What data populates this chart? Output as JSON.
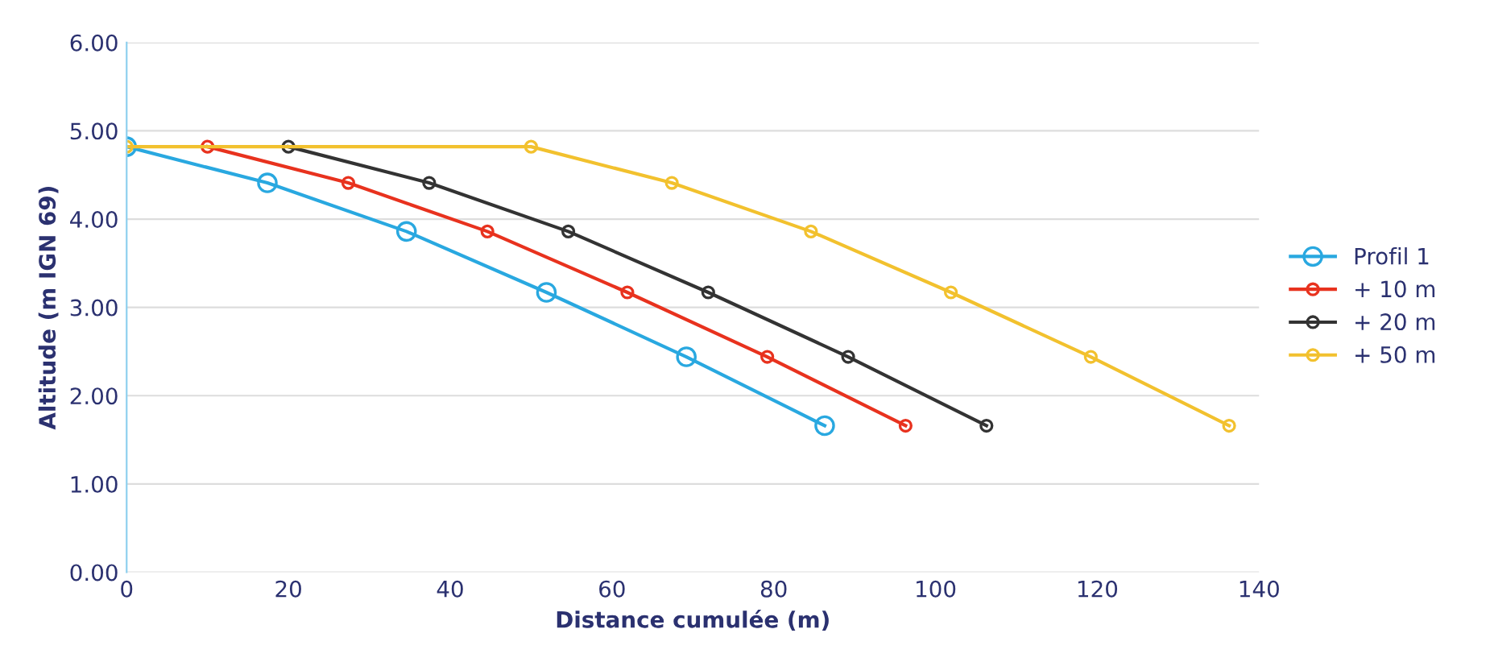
{
  "chart_data": {
    "type": "line",
    "xlabel": "Distance cumulée (m)",
    "ylabel": "Altitude (m IGN 69)",
    "xlim": [
      0,
      140
    ],
    "xticks": [
      0,
      20,
      40,
      60,
      80,
      100,
      120,
      140
    ],
    "ylim": [
      0,
      6
    ],
    "yticks": [
      {
        "value": 0,
        "label": "0.00"
      },
      {
        "value": 1,
        "label": "1.00"
      },
      {
        "value": 2,
        "label": "2.00"
      },
      {
        "value": 3,
        "label": "3.00"
      },
      {
        "value": 4,
        "label": "4.00"
      },
      {
        "value": 5,
        "label": "5.00"
      },
      {
        "value": 6,
        "label": "6.00"
      }
    ],
    "grid": "y",
    "legend": "right",
    "marker": "circle",
    "series": [
      {
        "name": "Profil 1",
        "color": "#29a8e0",
        "x": [
          0,
          17.4,
          34.6,
          51.9,
          69.2,
          86.3
        ],
        "values": [
          4.82,
          4.41,
          3.86,
          3.17,
          2.44,
          1.66
        ]
      },
      {
        "name": "+ 10 m",
        "color": "#e8321e",
        "x": [
          10,
          27.4,
          44.6,
          61.9,
          79.2,
          96.3
        ],
        "values": [
          4.82,
          4.41,
          3.86,
          3.17,
          2.44,
          1.66
        ]
      },
      {
        "name": "+ 20 m",
        "color": "#333333",
        "x": [
          20,
          37.4,
          54.6,
          71.9,
          89.2,
          106.3
        ],
        "values": [
          4.82,
          4.41,
          3.86,
          3.17,
          2.44,
          1.66
        ]
      },
      {
        "name": "+ 50 m",
        "color": "#f2c12e",
        "x": [
          0,
          50,
          67.4,
          84.6,
          101.9,
          119.2,
          136.3
        ],
        "values": [
          4.82,
          4.82,
          4.41,
          3.86,
          3.17,
          2.44,
          1.66
        ]
      }
    ]
  }
}
